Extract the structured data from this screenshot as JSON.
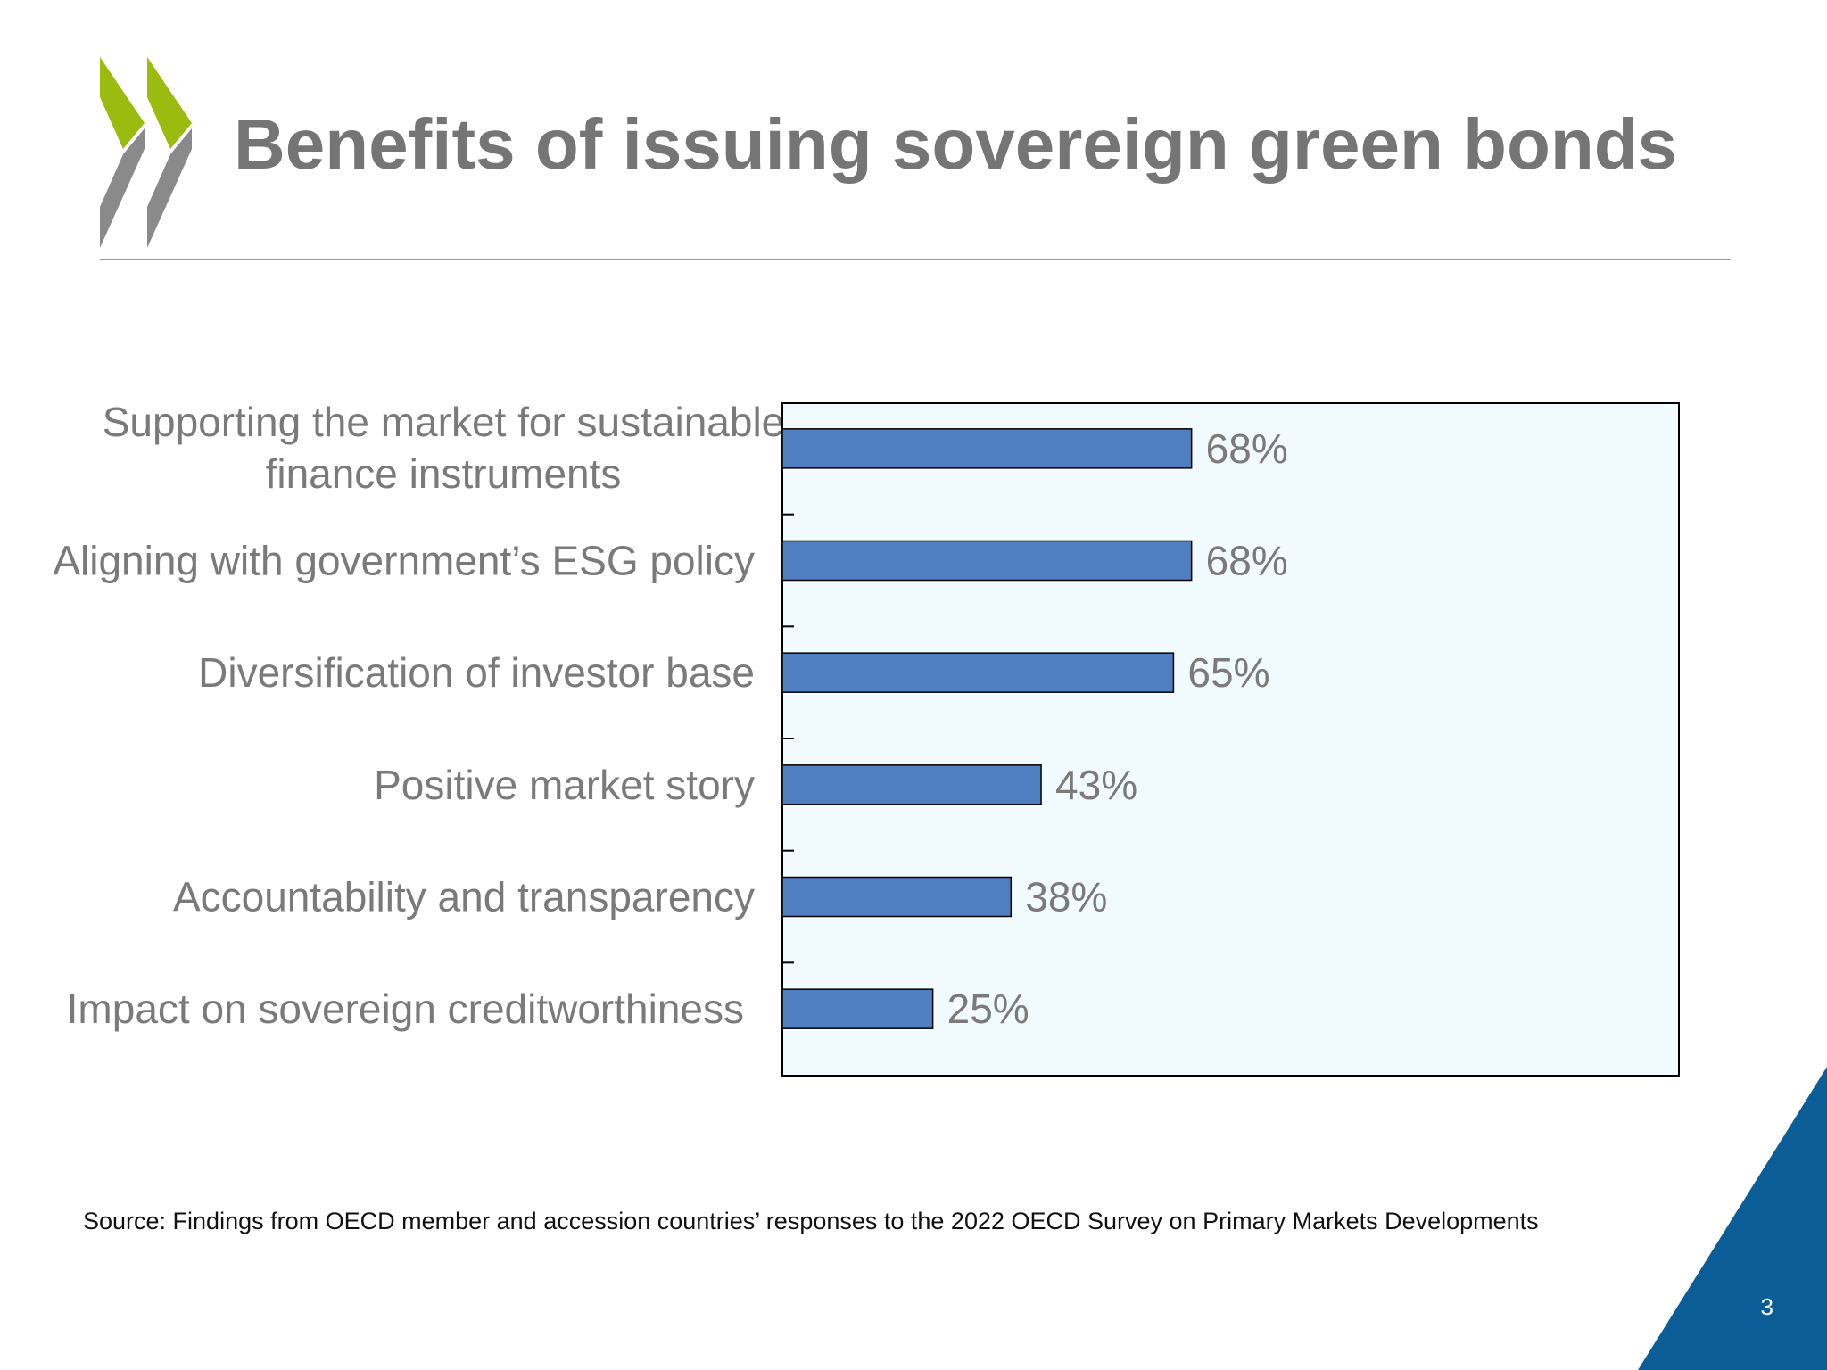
{
  "slide": {
    "title": "Benefits of issuing sovereign green bonds",
    "source": "Source: Findings from OECD member and accession countries’ responses to the 2022 OECD Survey on Primary Markets Developments",
    "page_number": "3"
  },
  "colors": {
    "title": "#757575",
    "logo_green": "#9bbb0f",
    "logo_grey": "#8a8a8a",
    "bar": "#4f7fc0",
    "plot_bg": "#f1fbfe",
    "corner": "#0b5d97",
    "label": "#7a7a7a"
  },
  "chart_data": {
    "type": "bar",
    "orientation": "horizontal",
    "categories": [
      "Supporting the market for sustainable finance instruments",
      "Aligning with government’s ESG policy",
      "Diversification of investor base",
      "Positive market story",
      "Accountability and transparency",
      "Impact on sovereign creditworthiness"
    ],
    "category_label_lines": [
      [
        "Supporting the market for sustainable",
        "finance instruments"
      ],
      [
        "Aligning with government’s ESG policy"
      ],
      [
        "Diversification of investor base"
      ],
      [
        "Positive market story"
      ],
      [
        "Accountability and transparency"
      ],
      [
        "Impact on sovereign creditworthiness"
      ]
    ],
    "values": [
      68,
      68,
      65,
      43,
      38,
      25
    ],
    "data_labels": [
      "68%",
      "68%",
      "65%",
      "43%",
      "38%",
      "25%"
    ],
    "unit": "%",
    "xlim": [
      0,
      100
    ],
    "title": "",
    "xlabel": "",
    "ylabel": "",
    "grid": false,
    "legend": "none"
  }
}
